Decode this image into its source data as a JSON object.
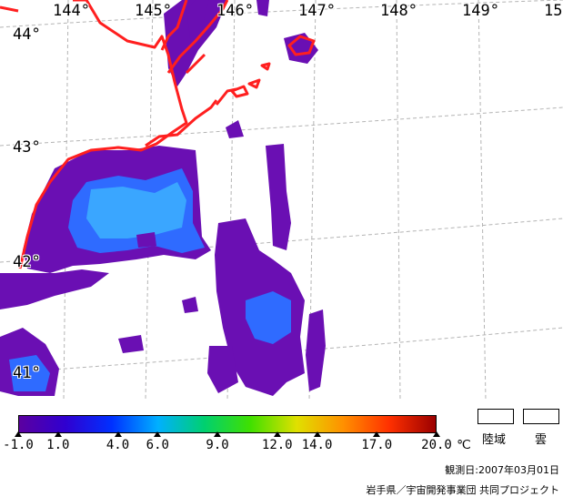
{
  "map": {
    "longitude_labels": [
      "144°",
      "145°",
      "146°",
      "147°",
      "148°",
      "149°",
      "15"
    ],
    "latitude_labels": [
      "44°",
      "43°",
      "42°",
      "41°"
    ],
    "colors": {
      "coastline": "#ff1f1f",
      "gridline": "#b4b4b4",
      "sst_cold": "#6a0fb3",
      "sst_mid": "#2f6bff",
      "sst_light": "#34a0ff"
    }
  },
  "colorbar": {
    "tick_labels": [
      "-1.0",
      "1.0",
      "4.0",
      "6.0",
      "9.0",
      "12.0",
      "14.0",
      "17.0",
      "20.0"
    ],
    "tick_values": [
      -1,
      1,
      4,
      6,
      9,
      12,
      14,
      17,
      20
    ],
    "unit": "℃",
    "range": [
      -1,
      20
    ],
    "gradient": [
      "#5b00a0",
      "#3000d0",
      "#0030ff",
      "#00b0ff",
      "#00d070",
      "#40e000",
      "#e0e000",
      "#ff9000",
      "#ff3000",
      "#9a0000"
    ]
  },
  "legend": {
    "land_label": "陸域",
    "cloud_label": "雲"
  },
  "footer": {
    "observation_date": "観測日:2007年03月01日",
    "credit": "岩手県／宇宙開発事業団 共同プロジェクト"
  }
}
